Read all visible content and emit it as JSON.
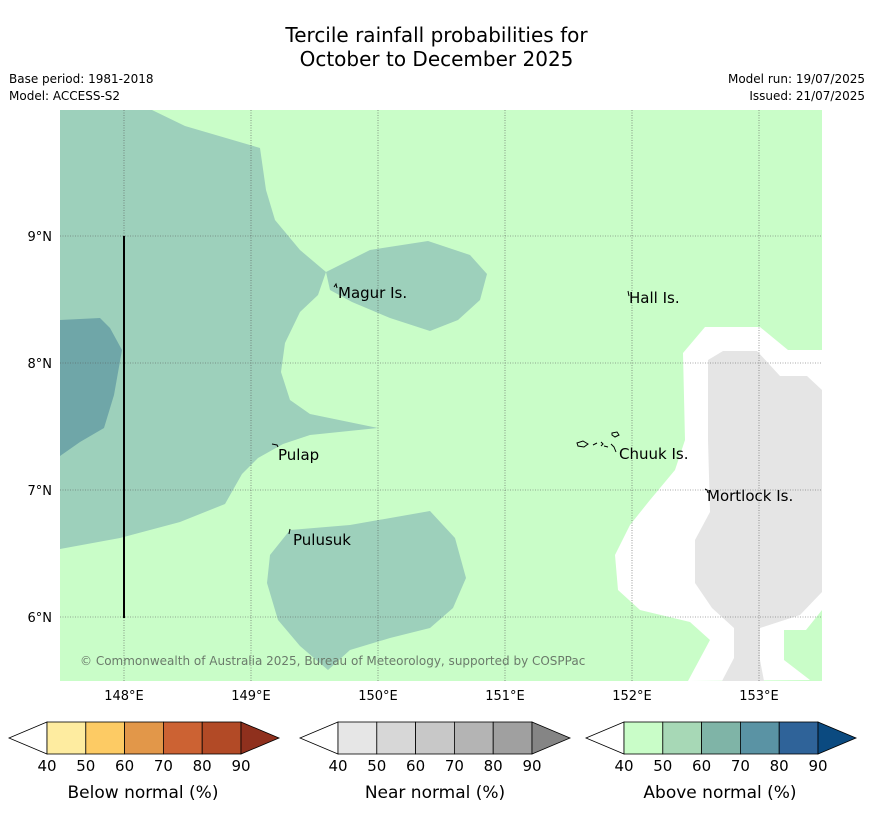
{
  "title_line1": "Tercile rainfall probabilities for",
  "title_line2": "October to December 2025",
  "meta": {
    "base_period": "Base period: 1981-2018",
    "model": "Model: ACCESS-S2",
    "model_run": "Model run: 19/07/2025",
    "issued": "Issued: 21/07/2025"
  },
  "map": {
    "lon_labels": [
      "148°E",
      "149°E",
      "150°E",
      "151°E",
      "152°E",
      "153°E"
    ],
    "lat_labels": [
      "9°N",
      "8°N",
      "7°N",
      "6°N"
    ],
    "places": [
      "Magur Is.",
      "Hall Is.",
      "Pulap",
      "Chuuk Is.",
      "Mortlock Is.",
      "Pulusuk"
    ],
    "copyright": "© Commonwealth of Australia 2025, Bureau of Meteorology, supported by COSPPac",
    "colors": {
      "land_background": "#c9fdc8",
      "above50": "#9dd0bb",
      "above60": "#6fa6a8",
      "near_white": "#ffffff",
      "near_grey": "#e5e5e5"
    }
  },
  "colorbars": [
    {
      "name": "below",
      "label": "Below normal (%)",
      "ticks": [
        "40",
        "50",
        "60",
        "70",
        "80",
        "90"
      ],
      "colors": [
        "#ffffff",
        "#feeca0",
        "#fdcb64",
        "#e29749",
        "#cc6233",
        "#b24a26",
        "#8f301d"
      ]
    },
    {
      "name": "near",
      "label": "Near normal (%)",
      "ticks": [
        "40",
        "50",
        "60",
        "70",
        "80",
        "90"
      ],
      "colors": [
        "#ffffff",
        "#e6e6e6",
        "#d7d7d7",
        "#c8c8c8",
        "#b4b4b4",
        "#a0a0a0",
        "#858585"
      ]
    },
    {
      "name": "above",
      "label": "Above normal (%)",
      "ticks": [
        "40",
        "50",
        "60",
        "70",
        "80",
        "90"
      ],
      "colors": [
        "#ffffff",
        "#c9fdc8",
        "#a7d8b6",
        "#7fb4a7",
        "#5a93a4",
        "#2f6399",
        "#0b4a80"
      ]
    }
  ]
}
